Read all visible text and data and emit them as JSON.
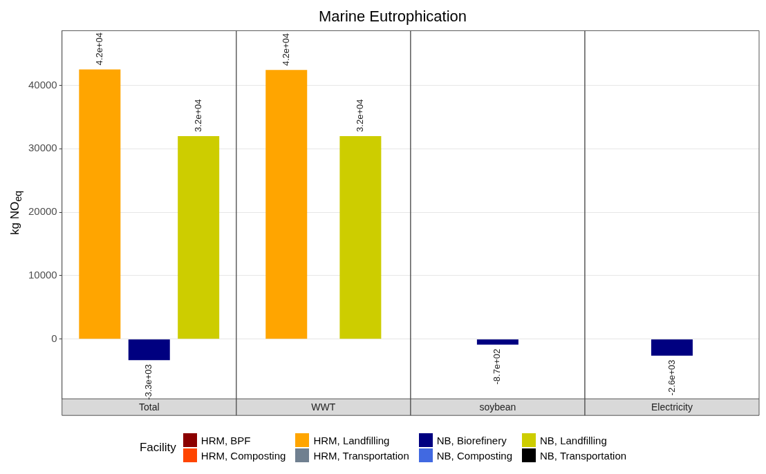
{
  "chart_data": {
    "type": "bar",
    "title": "Marine Eutrophication",
    "ylabel": "kg NO$_{eq}$",
    "legend_title": "Facility",
    "legend": "bottom",
    "grid": "y",
    "data_labels": true,
    "categories": [
      "Total",
      "WWT",
      "soybean",
      "Electricity"
    ],
    "ylim": [
      -9400,
      48600
    ],
    "yticks": [
      0,
      10000,
      20000,
      30000,
      40000
    ],
    "series": [
      {
        "name": "HRM, BPF",
        "color": "#8b0000",
        "values": [
          null,
          null,
          null,
          null
        ]
      },
      {
        "name": "HRM, Composting",
        "color": "#ff4500",
        "values": [
          null,
          null,
          null,
          null
        ]
      },
      {
        "name": "HRM, Landfilling",
        "color": "#ffa500",
        "values": [
          42500,
          42400,
          null,
          null
        ],
        "value_labels": [
          "4.2e+04",
          "4.2e+04",
          null,
          null
        ]
      },
      {
        "name": "HRM, Transportation",
        "color": "#708090",
        "values": [
          null,
          null,
          null,
          null
        ]
      },
      {
        "name": "NB, Biorefinery",
        "color": "#000080",
        "values": [
          -3300,
          null,
          -870,
          -2600
        ],
        "value_labels": [
          "-3.3e+03",
          null,
          "-8.7e+02",
          "-2.6e+03"
        ]
      },
      {
        "name": "NB, Composting",
        "color": "#4169e1",
        "values": [
          null,
          null,
          null,
          null
        ]
      },
      {
        "name": "NB, Landfilling",
        "color": "#cdcd00",
        "values": [
          32000,
          32000,
          null,
          null
        ],
        "value_labels": [
          "3.2e+04",
          "3.2e+04",
          null,
          null
        ]
      },
      {
        "name": "NB, Transportation",
        "color": "#000000",
        "values": [
          null,
          null,
          null,
          null
        ]
      }
    ]
  }
}
